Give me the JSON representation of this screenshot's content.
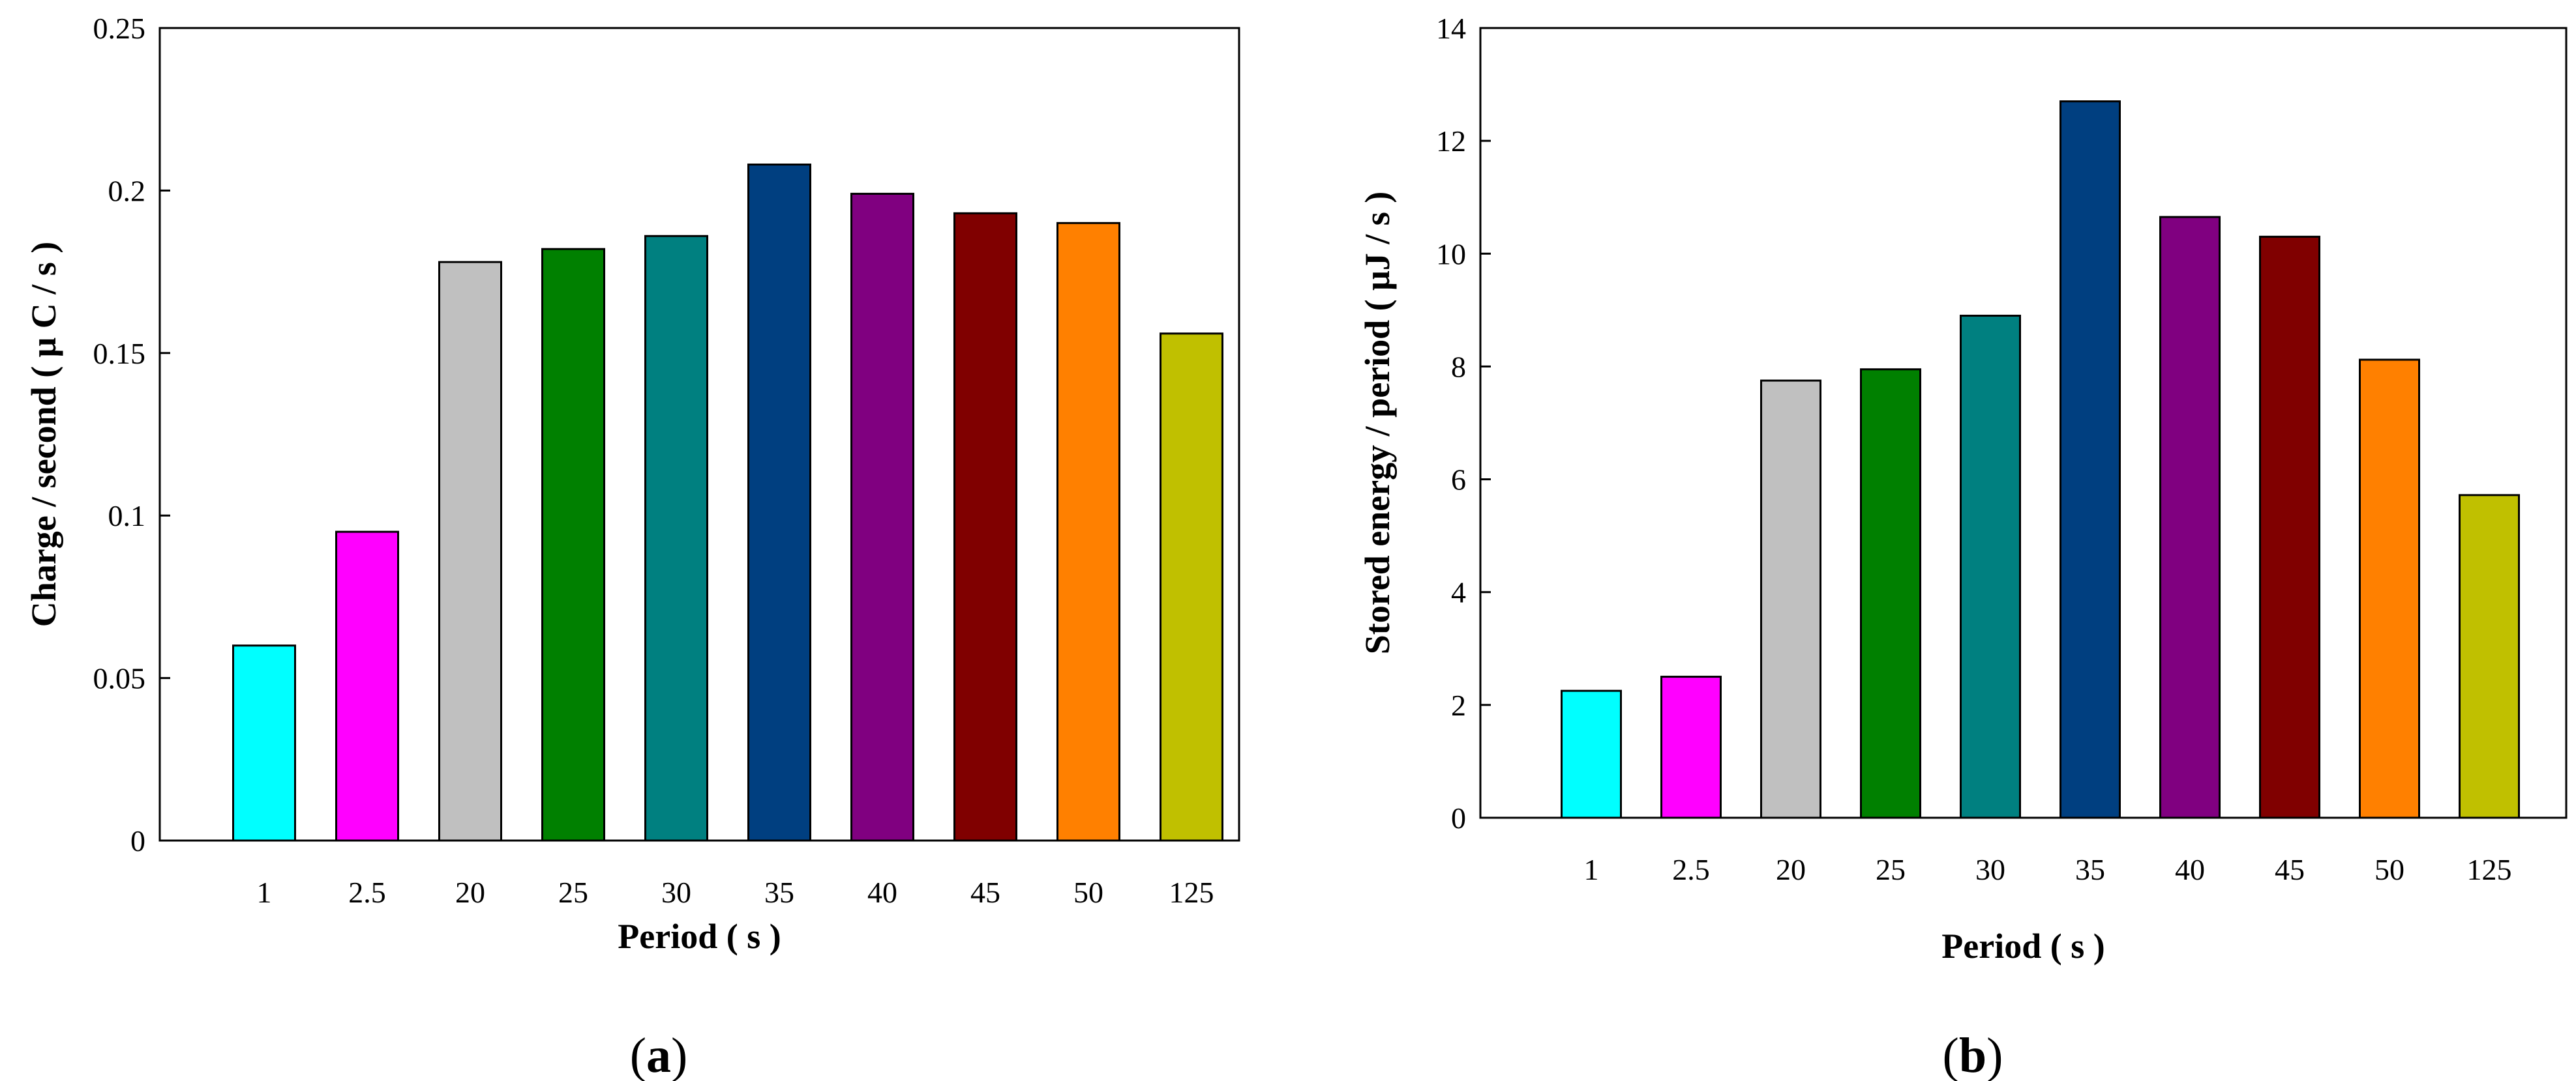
{
  "chart_data": [
    {
      "type": "bar",
      "panel": "a",
      "categories": [
        "1",
        "2.5",
        "20",
        "25",
        "30",
        "35",
        "40",
        "45",
        "50",
        "125"
      ],
      "values": [
        0.06,
        0.095,
        0.178,
        0.182,
        0.186,
        0.208,
        0.199,
        0.193,
        0.19,
        0.156
      ],
      "colors": [
        "#00FFFF",
        "#FF00FF",
        "#C0C0C0",
        "#008000",
        "#008080",
        "#003F80",
        "#800080",
        "#800000",
        "#FF8000",
        "#C0C000"
      ],
      "title": "",
      "xlabel": "Period ( s )",
      "ylabel": "Charge / second ( μ C / s )",
      "ylim": [
        0,
        0.25
      ],
      "yticks": [
        "0",
        "0.05",
        "0.1",
        "0.15",
        "0.2",
        "0.25"
      ],
      "ytick_values": [
        0,
        0.05,
        0.1,
        0.15,
        0.2,
        0.25
      ],
      "grid": false,
      "panel_label": "a"
    },
    {
      "type": "bar",
      "panel": "b",
      "categories": [
        "1",
        "2.5",
        "20",
        "25",
        "30",
        "35",
        "40",
        "45",
        "50",
        "125"
      ],
      "values": [
        2.25,
        2.5,
        7.75,
        7.95,
        8.9,
        12.7,
        10.65,
        10.3,
        8.12,
        5.72
      ],
      "colors": [
        "#00FFFF",
        "#FF00FF",
        "#C0C0C0",
        "#008000",
        "#008080",
        "#003F80",
        "#800080",
        "#800000",
        "#FF8000",
        "#C0C000"
      ],
      "title": "",
      "xlabel": "Period ( s )",
      "ylabel": "Stored energy / period ( μJ / s )",
      "ylim": [
        0,
        14
      ],
      "yticks": [
        "0",
        "2",
        "4",
        "6",
        "8",
        "10",
        "12",
        "14"
      ],
      "ytick_values": [
        0,
        2,
        4,
        6,
        8,
        10,
        12,
        14
      ],
      "grid": false,
      "panel_label": "b"
    }
  ]
}
